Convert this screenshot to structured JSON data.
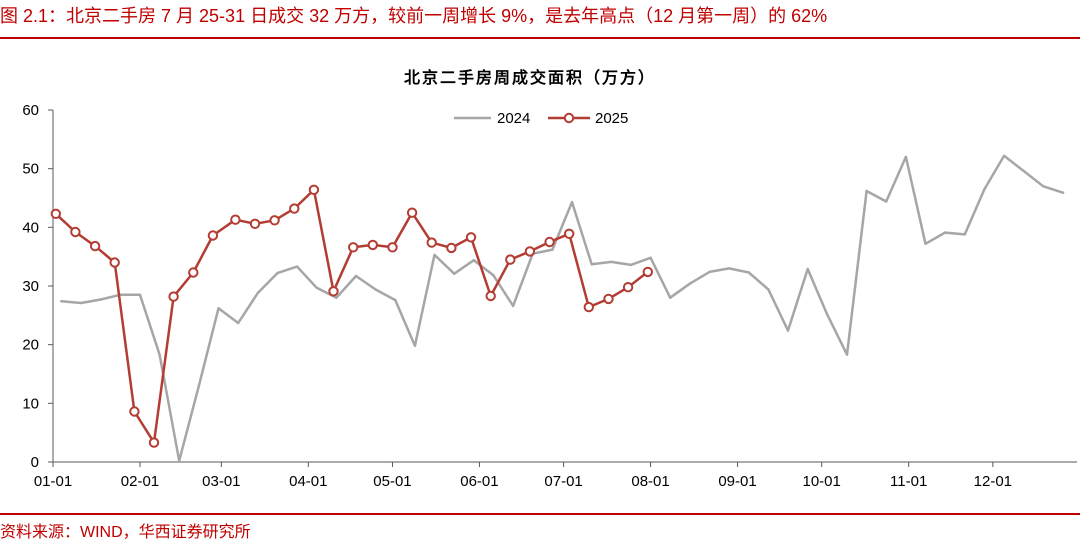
{
  "header": {
    "figure_title": "图 2.1：北京二手房 7 月 25-31 日成交 32 万方，较前一周增长 9%，是去年高点（12 月第一周）的 62%"
  },
  "footer": {
    "source": "资料来源：WIND，华西证券研究所"
  },
  "colors": {
    "accent": "#c00000",
    "axis": "#595959",
    "text": "#000000"
  },
  "chart_data": {
    "type": "line",
    "title": "北京二手房周成交面积（万方）",
    "xlabel": "",
    "ylabel": "",
    "xticks": [
      "01-01",
      "02-01",
      "03-01",
      "04-01",
      "05-01",
      "06-01",
      "07-01",
      "08-01",
      "09-01",
      "10-01",
      "11-01",
      "12-01"
    ],
    "yticks": [
      0,
      10,
      20,
      30,
      40,
      50,
      60
    ],
    "xlim": [
      "01-01",
      "12-31"
    ],
    "ylim": [
      0,
      60
    ],
    "grid": false,
    "legend": "top-center",
    "series": [
      {
        "name": "2024",
        "color": "#a6a6a6",
        "marker": "none",
        "x": [
          "01-04",
          "01-11",
          "01-18",
          "01-25",
          "02-01",
          "02-08",
          "02-15",
          "02-22",
          "02-29",
          "03-07",
          "03-14",
          "03-21",
          "03-28",
          "04-04",
          "04-11",
          "04-18",
          "04-25",
          "05-02",
          "05-09",
          "05-16",
          "05-23",
          "05-30",
          "06-06",
          "06-13",
          "06-20",
          "06-27",
          "07-04",
          "07-11",
          "07-18",
          "07-25",
          "08-01",
          "08-08",
          "08-15",
          "08-22",
          "08-29",
          "09-05",
          "09-12",
          "09-19",
          "09-26",
          "10-03",
          "10-10",
          "10-17",
          "10-24",
          "10-31",
          "11-07",
          "11-14",
          "11-21",
          "11-28",
          "12-05",
          "12-12",
          "12-19",
          "12-26"
        ],
        "y": [
          27.4,
          27.1,
          27.7,
          28.5,
          28.5,
          18.3,
          0.2,
          13.0,
          26.2,
          23.7,
          28.8,
          32.2,
          33.3,
          29.7,
          28.0,
          31.7,
          29.4,
          27.6,
          19.8,
          35.3,
          32.1,
          34.4,
          31.8,
          26.6,
          35.5,
          36.2,
          44.3,
          33.7,
          34.1,
          33.6,
          34.8,
          28.0,
          30.4,
          32.4,
          33.0,
          32.3,
          29.4,
          22.4,
          32.9,
          25.1,
          18.3,
          46.2,
          44.4,
          52.0,
          37.2,
          39.1,
          38.8,
          46.5,
          52.2,
          49.6,
          47.0,
          45.9
        ]
      },
      {
        "name": "2025",
        "color": "#b33c33",
        "marker": "circle",
        "x": [
          "01-02",
          "01-09",
          "01-16",
          "01-23",
          "01-30",
          "02-06",
          "02-13",
          "02-20",
          "02-27",
          "03-06",
          "03-13",
          "03-20",
          "03-27",
          "04-03",
          "04-10",
          "04-17",
          "04-24",
          "05-01",
          "05-08",
          "05-15",
          "05-22",
          "05-29",
          "06-05",
          "06-12",
          "06-19",
          "06-26",
          "07-03",
          "07-10",
          "07-17",
          "07-24",
          "07-31"
        ],
        "y": [
          42.3,
          39.2,
          36.8,
          34.0,
          8.6,
          3.3,
          28.2,
          32.3,
          38.6,
          41.3,
          40.6,
          41.2,
          43.2,
          46.4,
          29.1,
          36.6,
          37.0,
          36.6,
          42.5,
          37.4,
          36.5,
          38.3,
          28.3,
          34.5,
          35.9,
          37.5,
          38.9,
          26.4,
          27.8,
          29.8,
          32.4
        ]
      }
    ]
  }
}
